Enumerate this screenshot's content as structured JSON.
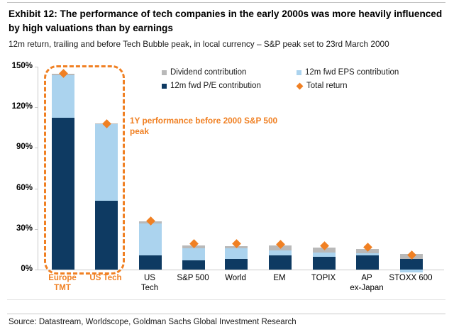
{
  "header": {
    "title": "Exhibit 12: The performance of tech companies in the early 2000s was more heavily influenced by high valuations than by earnings",
    "subtitle": "12m return, trailing and before Tech Bubble peak, in local currency – S&P peak set to 23rd March 2000"
  },
  "annotation": {
    "text": "1Y performance before 2000 S&P 500 peak"
  },
  "footer": {
    "source": "Source: Datastream, Worldscope, Goldman Sachs Global Investment Research"
  },
  "colors": {
    "dark_blue": "#0e3a62",
    "light_blue": "#abd3ee",
    "gray": "#b9b9b9",
    "orange": "#f08023",
    "axis": "#c9c9c9"
  },
  "chart_data": {
    "type": "bar",
    "stacked": true,
    "grid": false,
    "ylim": [
      0,
      150
    ],
    "yticks": [
      "0%",
      "30%",
      "60%",
      "90%",
      "120%",
      "150%"
    ],
    "ytick_values": [
      0,
      30,
      60,
      90,
      120,
      150
    ],
    "categories": [
      "Europe TMT",
      "US Tech",
      "US Tech",
      "S&P 500",
      "World",
      "EM",
      "TOPIX",
      "AP ex-Japan",
      "STOXX 600"
    ],
    "display_labels": [
      "Europe\nTMT",
      "US Tech",
      "US\nTech",
      "S&P 500",
      "World",
      "EM",
      "TOPIX",
      "AP\nex-Japan",
      "STOXX 600"
    ],
    "highlighted_category_count": 2,
    "series": [
      {
        "name": "12m fwd P/E contribution",
        "color": "#0e3a62",
        "values": [
          112,
          51,
          10.5,
          7,
          8,
          10.5,
          9.5,
          10.5,
          8
        ]
      },
      {
        "name": "12m fwd EPS contribution",
        "color": "#abd3ee",
        "values": [
          31.5,
          56.5,
          23.5,
          9,
          7.5,
          3.5,
          3,
          1.5,
          -2
        ]
      },
      {
        "name": "Dividend contribution",
        "color": "#b9b9b9",
        "values": [
          1.5,
          0.5,
          1.5,
          2,
          2,
          4,
          4,
          3,
          3.5
        ]
      }
    ],
    "total_return": {
      "name": "Total return",
      "color": "#f08023",
      "marker": "diamond",
      "values": [
        145,
        108,
        36,
        19,
        19,
        18.5,
        17.5,
        16.5,
        10.5
      ]
    },
    "legend": [
      {
        "label": "Dividend contribution",
        "swatch": "gray-square"
      },
      {
        "label": "12m fwd EPS contribution",
        "swatch": "light-blue-square"
      },
      {
        "label": "12m fwd P/E contribution",
        "swatch": "dark-blue-square"
      },
      {
        "label": "Total return",
        "swatch": "orange-diamond"
      }
    ],
    "legend_position": "top-center",
    "annotation": "1Y performance before 2000 S&P 500 peak"
  }
}
